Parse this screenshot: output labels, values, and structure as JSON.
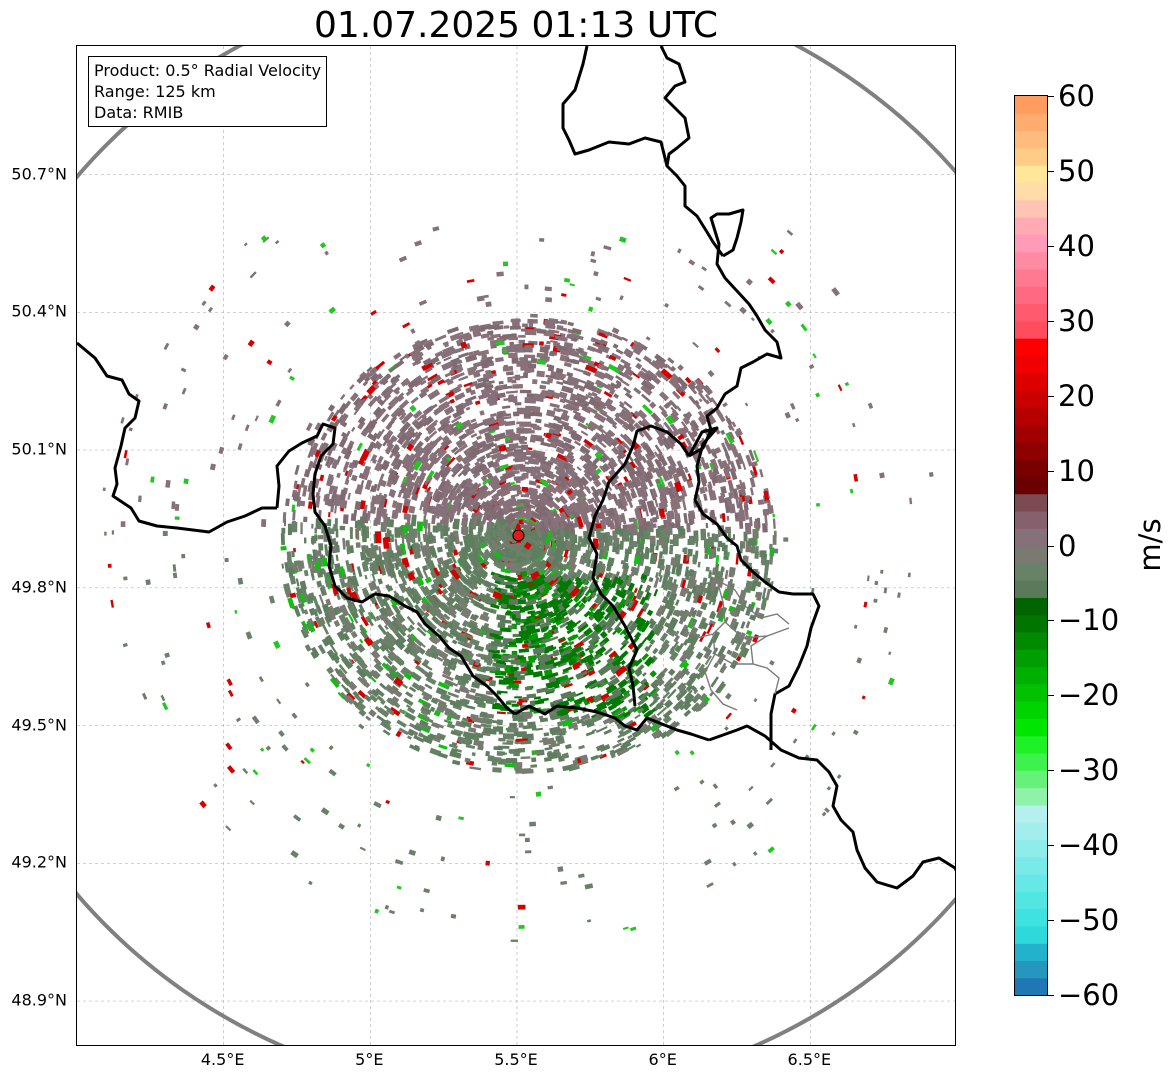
{
  "title": "01.07.2025 01:13 UTC",
  "info_box": {
    "product": "Product: 0.5° Radial Velocity",
    "range": "Range: 125 km",
    "data": "Data: RMIB"
  },
  "axes": {
    "lat_labels": [
      "50.7°N",
      "50.4°N",
      "50.1°N",
      "49.8°N",
      "49.5°N",
      "49.2°N",
      "48.9°N"
    ],
    "lon_labels": [
      "4.5°E",
      "5°E",
      "5.5°E",
      "6°E",
      "6.5°E"
    ],
    "lat_values": [
      50.7,
      50.4,
      50.1,
      49.8,
      49.5,
      49.2,
      48.9
    ],
    "lon_values": [
      4.5,
      5.0,
      5.5,
      6.0,
      6.5
    ],
    "lon_range": [
      4.0,
      7.0
    ],
    "lat_range": [
      48.8,
      50.98
    ],
    "grid": true
  },
  "radar_site": {
    "lat": 49.914,
    "lon": 5.505,
    "marker_color": "#e31a1c"
  },
  "colorbar": {
    "unit": "m/s",
    "min": -60,
    "max": 60,
    "tick_labels": [
      "60",
      "50",
      "40",
      "30",
      "20",
      "10",
      "0",
      "−10",
      "−20",
      "−30",
      "−40",
      "−50",
      "−60"
    ],
    "tick_values": [
      60,
      50,
      40,
      30,
      20,
      10,
      0,
      -10,
      -20,
      -30,
      -40,
      -50,
      -60
    ],
    "colors_bottom_to_top": [
      "#1f78b4",
      "#2596be",
      "#22b2cc",
      "#2ed9dc",
      "#3ee2e0",
      "#52e6e2",
      "#66e8e6",
      "#7aeae8",
      "#8eecea",
      "#a2eeec",
      "#b6f0ee",
      "#8ef2a8",
      "#66f27a",
      "#3ef24e",
      "#1ef226",
      "#00e600",
      "#00d400",
      "#00c200",
      "#00b000",
      "#009e00",
      "#008a00",
      "#007600",
      "#006400",
      "#5a7a5a",
      "#688268",
      "#7a7a72",
      "#86707a",
      "#86606c",
      "#7c4a52",
      "#6a0000",
      "#7a0000",
      "#8e0000",
      "#a20000",
      "#b60000",
      "#ca0000",
      "#de0000",
      "#f00000",
      "#ff0000",
      "#ff4d5e",
      "#ff5a6e",
      "#ff6a80",
      "#ff7a90",
      "#ff8aa4",
      "#ff9ab8",
      "#ffaab4",
      "#ffc4b4",
      "#ffdca8",
      "#ffe69a",
      "#ffcc88",
      "#ffbc7c",
      "#ffac6e",
      "#ff9c5e"
    ]
  }
}
